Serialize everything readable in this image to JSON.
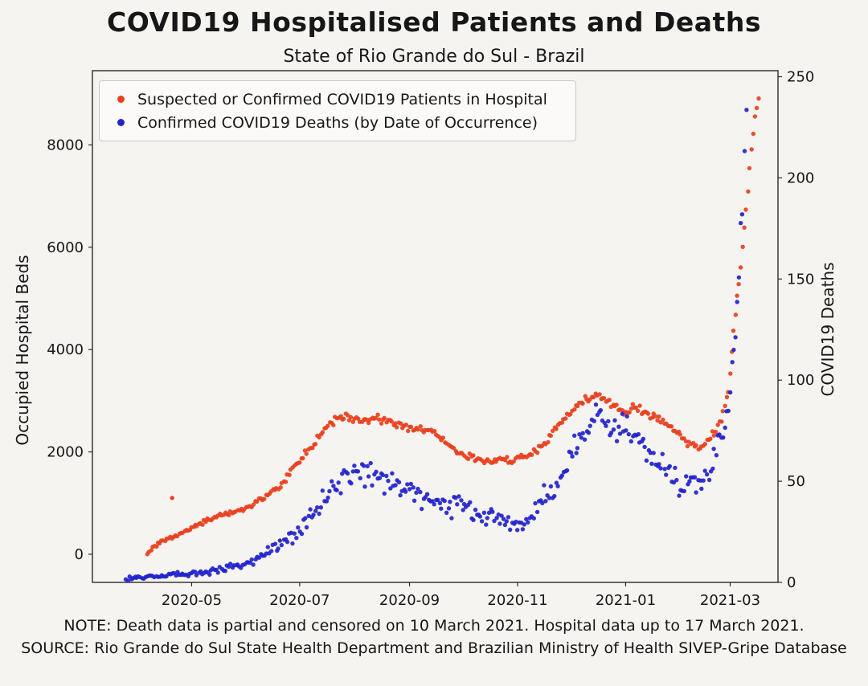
{
  "figure": {
    "title": "COVID19 Hospitalised Patients and Deaths",
    "subtitle": "State of Rio Grande do Sul - Brazil",
    "note": "NOTE: Death data is partial and censored on 10 March 2021. Hospital data up to 17 March 2021.",
    "source": "SOURCE: Rio Grande do Sul State Health Department and Brazilian Ministry of Health SIVEP-Gripe Database"
  },
  "chart_data": {
    "type": "scatter",
    "title": "COVID19 Hospitalised Patients and Deaths",
    "subtitle": "State of Rio Grande do Sul - Brazil",
    "grid": false,
    "legend_position": "upper left",
    "x_range": [
      "2020-03-06",
      "2021-03-28"
    ],
    "x_ticks": [
      {
        "date": "2020-05-01",
        "label": "2020-05"
      },
      {
        "date": "2020-07-01",
        "label": "2020-07"
      },
      {
        "date": "2020-09-01",
        "label": "2020-09"
      },
      {
        "date": "2020-11-01",
        "label": "2020-11"
      },
      {
        "date": "2021-01-01",
        "label": "2021-01"
      },
      {
        "date": "2021-03-01",
        "label": "2021-03"
      }
    ],
    "left_axis": {
      "label": "Occupied Hospital Beds",
      "range": [
        -550,
        9450
      ],
      "ticks": [
        0,
        2000,
        4000,
        6000,
        8000
      ]
    },
    "right_axis": {
      "label": "COVID19 Deaths",
      "range": [
        0,
        253
      ],
      "ticks": [
        0,
        50,
        100,
        150,
        200,
        250
      ]
    },
    "series": [
      {
        "key": "hospital-patients",
        "name": "Suspected or Confirmed COVID19 Patients in Hospital",
        "color": "#e8401e",
        "axis": "left",
        "noise_base": 25,
        "noise_rel": 0.03,
        "noise_max": 105,
        "points": [
          [
            "2020-04-06",
            20
          ],
          [
            "2020-04-09",
            120
          ],
          [
            "2020-04-12",
            200
          ],
          [
            "2020-04-15",
            260
          ],
          [
            "2020-04-18",
            300
          ],
          [
            "2020-04-22",
            360
          ],
          [
            "2020-04-26",
            430
          ],
          [
            "2020-05-01",
            520
          ],
          [
            "2020-05-06",
            600
          ],
          [
            "2020-05-11",
            680
          ],
          [
            "2020-05-16",
            740
          ],
          [
            "2020-05-21",
            790
          ],
          [
            "2020-05-26",
            820
          ],
          [
            "2020-05-31",
            880
          ],
          [
            "2020-06-05",
            980
          ],
          [
            "2020-06-10",
            1090
          ],
          [
            "2020-06-15",
            1200
          ],
          [
            "2020-06-20",
            1330
          ],
          [
            "2020-06-25",
            1550
          ],
          [
            "2020-06-30",
            1800
          ],
          [
            "2020-07-05",
            2000
          ],
          [
            "2020-07-10",
            2200
          ],
          [
            "2020-07-15",
            2450
          ],
          [
            "2020-07-20",
            2600
          ],
          [
            "2020-07-25",
            2680
          ],
          [
            "2020-07-30",
            2700
          ],
          [
            "2020-08-04",
            2620
          ],
          [
            "2020-08-09",
            2590
          ],
          [
            "2020-08-14",
            2650
          ],
          [
            "2020-08-19",
            2620
          ],
          [
            "2020-08-24",
            2550
          ],
          [
            "2020-08-29",
            2500
          ],
          [
            "2020-09-03",
            2480
          ],
          [
            "2020-09-08",
            2420
          ],
          [
            "2020-09-13",
            2400
          ],
          [
            "2020-09-18",
            2280
          ],
          [
            "2020-09-23",
            2150
          ],
          [
            "2020-09-28",
            2000
          ],
          [
            "2020-10-03",
            1920
          ],
          [
            "2020-10-08",
            1850
          ],
          [
            "2020-10-13",
            1800
          ],
          [
            "2020-10-18",
            1840
          ],
          [
            "2020-10-23",
            1870
          ],
          [
            "2020-10-28",
            1810
          ],
          [
            "2020-11-02",
            1870
          ],
          [
            "2020-11-07",
            1950
          ],
          [
            "2020-11-12",
            2030
          ],
          [
            "2020-11-17",
            2200
          ],
          [
            "2020-11-22",
            2400
          ],
          [
            "2020-11-27",
            2650
          ],
          [
            "2020-12-02",
            2800
          ],
          [
            "2020-12-07",
            2950
          ],
          [
            "2020-12-12",
            3050
          ],
          [
            "2020-12-17",
            3120
          ],
          [
            "2020-12-22",
            3000
          ],
          [
            "2020-12-27",
            2850
          ],
          [
            "2021-01-01",
            2780
          ],
          [
            "2021-01-06",
            2870
          ],
          [
            "2021-01-11",
            2800
          ],
          [
            "2021-01-16",
            2680
          ],
          [
            "2021-01-21",
            2600
          ],
          [
            "2021-01-26",
            2500
          ],
          [
            "2021-01-31",
            2350
          ],
          [
            "2021-02-05",
            2180
          ],
          [
            "2021-02-10",
            2100
          ],
          [
            "2021-02-15",
            2150
          ],
          [
            "2021-02-20",
            2350
          ],
          [
            "2021-02-24",
            2600
          ],
          [
            "2021-02-28",
            3200
          ],
          [
            "2021-03-03",
            4300
          ],
          [
            "2021-03-06",
            5300
          ],
          [
            "2021-03-09",
            6400
          ],
          [
            "2021-03-12",
            7500
          ],
          [
            "2021-03-14",
            8300
          ],
          [
            "2021-03-16",
            8700
          ],
          [
            "2021-03-17",
            8850
          ]
        ],
        "outliers": [
          [
            "2020-04-20",
            1100
          ]
        ]
      },
      {
        "key": "deaths",
        "name": "Confirmed COVID19 Deaths (by Date of Occurrence)",
        "color": "#2323cc",
        "axis": "right",
        "noise_base": 1.2,
        "noise_rel": 0.16,
        "noise_max": 9.5,
        "points": [
          [
            "2020-03-25",
            2
          ],
          [
            "2020-04-01",
            2
          ],
          [
            "2020-04-08",
            3
          ],
          [
            "2020-04-15",
            3
          ],
          [
            "2020-04-22",
            4
          ],
          [
            "2020-04-29",
            4
          ],
          [
            "2020-05-06",
            5
          ],
          [
            "2020-05-13",
            6
          ],
          [
            "2020-05-20",
            7
          ],
          [
            "2020-05-27",
            8
          ],
          [
            "2020-06-03",
            10
          ],
          [
            "2020-06-10",
            13
          ],
          [
            "2020-06-17",
            17
          ],
          [
            "2020-06-24",
            21
          ],
          [
            "2020-07-01",
            26
          ],
          [
            "2020-07-08",
            33
          ],
          [
            "2020-07-15",
            42
          ],
          [
            "2020-07-22",
            50
          ],
          [
            "2020-07-29",
            55
          ],
          [
            "2020-08-05",
            52
          ],
          [
            "2020-08-12",
            55
          ],
          [
            "2020-08-19",
            50
          ],
          [
            "2020-08-26",
            46
          ],
          [
            "2020-09-02",
            48
          ],
          [
            "2020-09-09",
            43
          ],
          [
            "2020-09-16",
            39
          ],
          [
            "2020-09-23",
            36
          ],
          [
            "2020-09-30",
            38
          ],
          [
            "2020-10-07",
            34
          ],
          [
            "2020-10-14",
            31
          ],
          [
            "2020-10-21",
            33
          ],
          [
            "2020-10-28",
            29
          ],
          [
            "2020-11-04",
            28
          ],
          [
            "2020-11-11",
            35
          ],
          [
            "2020-11-18",
            44
          ],
          [
            "2020-11-25",
            54
          ],
          [
            "2020-12-02",
            63
          ],
          [
            "2020-12-09",
            75
          ],
          [
            "2020-12-16",
            84
          ],
          [
            "2020-12-23",
            74
          ],
          [
            "2020-12-30",
            79
          ],
          [
            "2021-01-06",
            72
          ],
          [
            "2021-01-13",
            64
          ],
          [
            "2021-01-20",
            59
          ],
          [
            "2021-01-27",
            52
          ],
          [
            "2021-02-03",
            46
          ],
          [
            "2021-02-10",
            48
          ],
          [
            "2021-02-17",
            54
          ],
          [
            "2021-02-24",
            70
          ],
          [
            "2021-02-28",
            85
          ],
          [
            "2021-03-03",
            115
          ],
          [
            "2021-03-06",
            155
          ],
          [
            "2021-03-08",
            190
          ],
          [
            "2021-03-10",
            228
          ]
        ],
        "outliers": []
      }
    ]
  }
}
